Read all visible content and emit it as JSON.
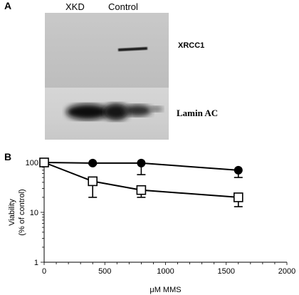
{
  "panel_a": {
    "letter": "A",
    "lanes": [
      "XKD",
      "Control"
    ],
    "band_labels": [
      "XRCC1",
      "Lamin AC"
    ]
  },
  "panel_b": {
    "letter": "B"
  },
  "chart_data": {
    "type": "line",
    "xlabel": "μM MMS",
    "ylabel_line1": "Viability",
    "ylabel_line2": "(% of control)",
    "xlim": [
      0,
      2000
    ],
    "ylim": [
      1,
      100
    ],
    "y_scale": "log",
    "x_ticks": [
      0,
      500,
      1000,
      1500,
      2000
    ],
    "y_ticks": [
      100,
      10,
      1
    ],
    "grid": false,
    "series": [
      {
        "marker": "filled-circle",
        "x": [
          0,
          400,
          800,
          1600
        ],
        "y": [
          100,
          97,
          97,
          70
        ],
        "err": [
          0,
          5,
          40,
          20
        ]
      },
      {
        "marker": "open-square",
        "x": [
          0,
          400,
          800,
          1600
        ],
        "y": [
          100,
          42,
          28,
          20
        ],
        "err": [
          0,
          22,
          8,
          7
        ]
      }
    ]
  }
}
